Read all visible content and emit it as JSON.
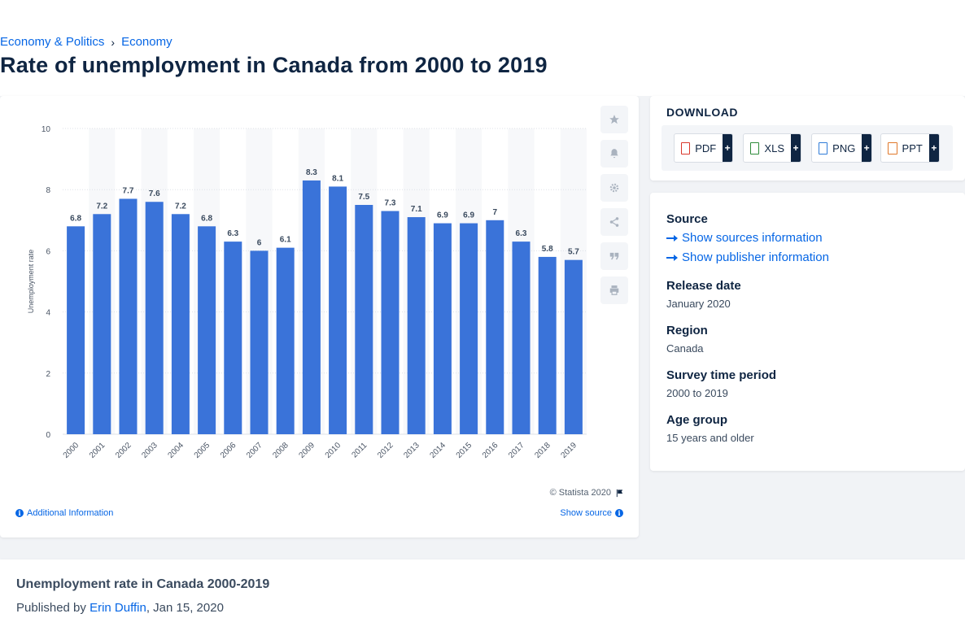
{
  "breadcrumb": {
    "items": [
      "Economy & Politics",
      "Economy"
    ],
    "separator": "›"
  },
  "page_title": "Rate of unemployment in Canada from 2000 to 2019",
  "chart_toolbar": {
    "icons": [
      "star-icon",
      "bell-icon",
      "gear-icon",
      "share-icon",
      "quote-icon",
      "print-icon"
    ]
  },
  "chart_footer": {
    "copyright": "© Statista 2020",
    "additional_info": "Additional Information",
    "show_source": "Show source"
  },
  "download": {
    "title": "DOWNLOAD",
    "buttons": [
      {
        "label": "PDF",
        "plus": "+",
        "color": "#d9372b"
      },
      {
        "label": "XLS",
        "plus": "+",
        "color": "#2e8b3a"
      },
      {
        "label": "PNG",
        "plus": "+",
        "color": "#2f7bd8"
      },
      {
        "label": "PPT",
        "plus": "+",
        "color": "#e0782a"
      }
    ]
  },
  "meta": {
    "source_heading": "Source",
    "show_sources": "Show sources information",
    "show_publisher": "Show publisher information",
    "release_heading": "Release date",
    "release_value": "January 2020",
    "region_heading": "Region",
    "region_value": "Canada",
    "period_heading": "Survey time period",
    "period_value": "2000 to 2019",
    "age_heading": "Age group",
    "age_value": "15 years and older"
  },
  "bottom": {
    "title": "Unemployment rate in Canada 2000-2019",
    "published_prefix": "Published by",
    "author": "Erin Duffin",
    "date": ", Jan 15, 2020"
  },
  "colors": {
    "bar": "#3a73d9",
    "accent": "#0666e5",
    "text_dark": "#0f2542"
  },
  "chart_data": {
    "type": "bar",
    "categories": [
      "2000",
      "2001",
      "2002",
      "2003",
      "2004",
      "2005",
      "2006",
      "2007",
      "2008",
      "2009",
      "2010",
      "2011",
      "2012",
      "2013",
      "2014",
      "2015",
      "2016",
      "2017",
      "2018",
      "2019"
    ],
    "values": [
      6.8,
      7.2,
      7.7,
      7.6,
      7.2,
      6.8,
      6.3,
      6,
      6.1,
      8.3,
      8.1,
      7.5,
      7.3,
      7.1,
      6.9,
      6.9,
      7,
      6.3,
      5.8,
      5.7
    ],
    "data_labels": [
      "6.8",
      "7.2",
      "7.7",
      "7.6",
      "7.2",
      "6.8",
      "6.3",
      "6",
      "6.1",
      "8.3",
      "8.1",
      "7.5",
      "7.3",
      "7.1",
      "6.9",
      "6.9",
      "7",
      "6.3",
      "5.8",
      "5.7"
    ],
    "ylabel": "Unemployment rate",
    "ylim": [
      0,
      10
    ],
    "yticks": [
      0,
      2,
      4,
      6,
      8,
      10
    ],
    "grid": true
  }
}
